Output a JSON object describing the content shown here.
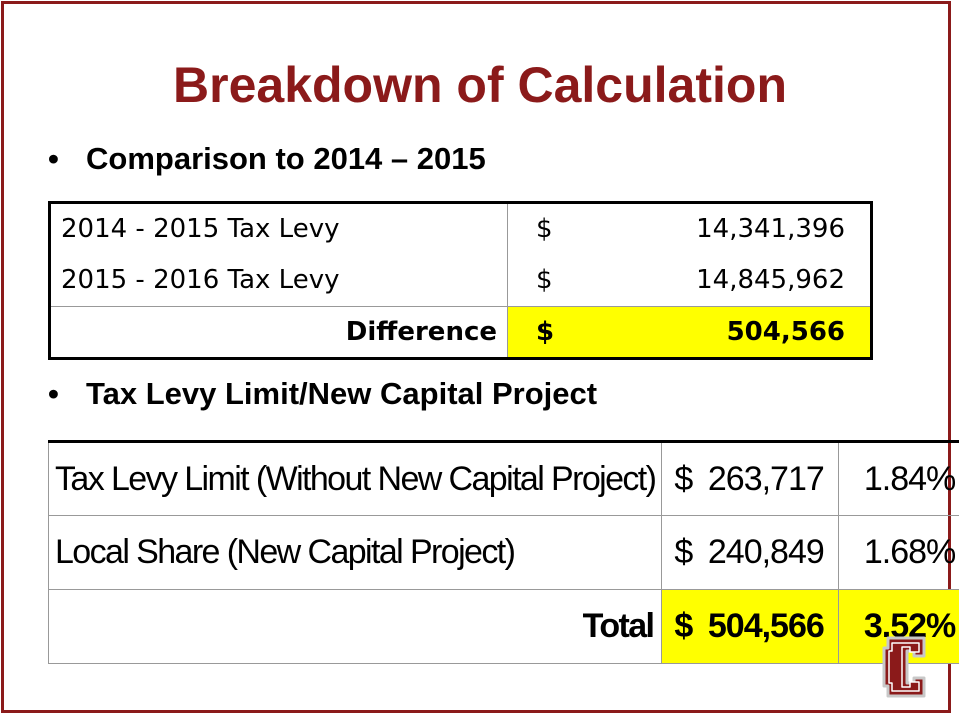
{
  "slide": {
    "title": "Breakdown of Calculation",
    "bullets": [
      "Comparison to 2014 – 2015",
      "Tax Levy Limit/New Capital Project"
    ],
    "bullet_glyph": "•",
    "accent_color": "#8b1a1a",
    "highlight_color": "#ffff00"
  },
  "comparison_table": {
    "rows": [
      {
        "label": "2014 - 2015 Tax Levy",
        "currency": "$",
        "amount": "14,341,396"
      },
      {
        "label": "2015 - 2016 Tax Levy",
        "currency": "$",
        "amount": "14,845,962"
      },
      {
        "label": "Difference",
        "currency": "$",
        "amount": "504,566"
      }
    ]
  },
  "levy_table": {
    "rows": [
      {
        "label": "Tax Levy Limit (Without New Capital Project)",
        "currency": "$",
        "amount": "263,717",
        "percent": "1.84%"
      },
      {
        "label": "Local Share (New Capital Project)",
        "currency": "$",
        "amount": "240,849",
        "percent": "1.68%"
      },
      {
        "label": "Total",
        "currency": "$",
        "amount": "504,566",
        "percent": "3.52%"
      }
    ]
  },
  "logo": {
    "icon": "block-letter-c-logo",
    "letter": "C",
    "color": "#8b1a1a"
  }
}
